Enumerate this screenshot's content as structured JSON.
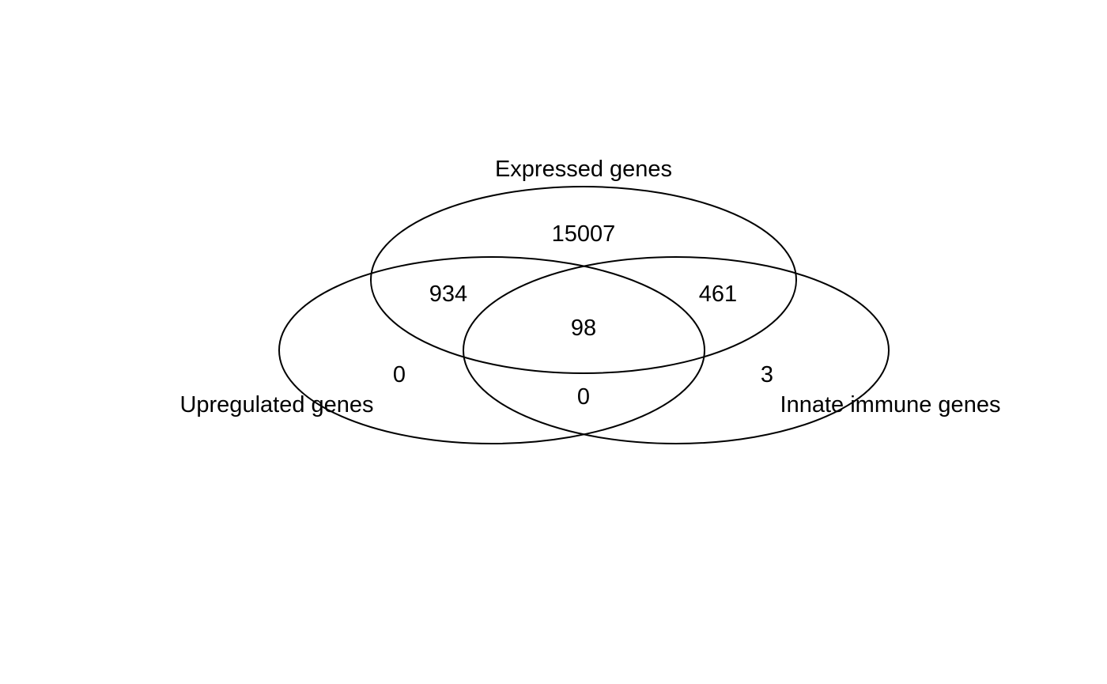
{
  "venn": {
    "stroke_color": "#000000",
    "sets": [
      {
        "id": "expressed",
        "label": "Expressed genes"
      },
      {
        "id": "upregulated",
        "label": "Upregulated genes"
      },
      {
        "id": "innate",
        "label": "Innate immune genes"
      }
    ],
    "regions": {
      "expressed_only": "15007",
      "expressed_upregulated": "934",
      "expressed_innate": "461",
      "all_three": "98",
      "upregulated_only": "0",
      "upregulated_innate": "0",
      "innate_only": "3"
    }
  }
}
